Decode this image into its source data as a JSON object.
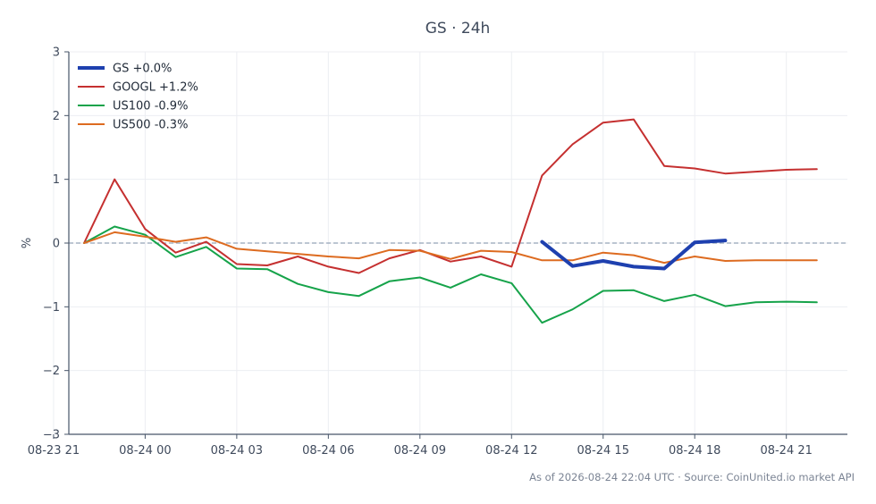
{
  "chart_data": {
    "type": "line",
    "title": "GS · 24h",
    "ylabel": "%",
    "xlabel": "",
    "ylim": [
      -3,
      3
    ],
    "yticks": [
      -3,
      -2,
      -1,
      0,
      1,
      2,
      3
    ],
    "ytick_labels": [
      "−3",
      "−2",
      "−1",
      "0",
      "1",
      "2",
      "3"
    ],
    "x_start": "08-23 21:30",
    "x_end": "08-24 23:00",
    "xticks": [
      "08-23 21:00",
      "08-24 00:00",
      "08-24 03:00",
      "08-24 06:00",
      "08-24 09:00",
      "08-24 12:00",
      "08-24 15:00",
      "08-24 18:00",
      "08-24 21:00"
    ],
    "xtick_labels": [
      "08-23 21",
      "08-24 00",
      "08-24 03",
      "08-24 06",
      "08-24 09",
      "08-24 12",
      "08-24 15",
      "08-24 18",
      "08-24 21"
    ],
    "grid": true,
    "zero_line": true,
    "legend": "top-left",
    "times": [
      "08-23 22:00",
      "08-23 23:00",
      "08-24 00:00",
      "08-24 01:00",
      "08-24 02:00",
      "08-24 03:00",
      "08-24 04:00",
      "08-24 05:00",
      "08-24 06:00",
      "08-24 07:00",
      "08-24 08:00",
      "08-24 09:00",
      "08-24 10:00",
      "08-24 11:00",
      "08-24 12:00",
      "08-24 13:00",
      "08-24 14:00",
      "08-24 15:00",
      "08-24 16:00",
      "08-24 17:00",
      "08-24 18:00",
      "08-24 19:00",
      "08-24 20:00",
      "08-24 21:00",
      "08-24 22:00"
    ],
    "series": [
      {
        "name": "GS +0.0%",
        "color": "#1e40af",
        "width": 4,
        "values": [
          null,
          null,
          null,
          null,
          null,
          null,
          null,
          null,
          null,
          null,
          null,
          null,
          null,
          null,
          null,
          0.02,
          -0.36,
          -0.28,
          -0.37,
          -0.4,
          0.01,
          0.04,
          null,
          null,
          null
        ]
      },
      {
        "name": "GOOGL +1.2%",
        "color": "#c53030",
        "width": 2,
        "values": [
          0.0,
          1.0,
          0.22,
          -0.15,
          0.02,
          -0.33,
          -0.35,
          -0.21,
          -0.37,
          -0.47,
          -0.24,
          -0.11,
          -0.29,
          -0.21,
          -0.37,
          1.06,
          1.55,
          1.89,
          1.94,
          1.21,
          1.17,
          1.09,
          1.12,
          1.15,
          1.16
        ]
      },
      {
        "name": "US100 -0.9%",
        "color": "#16a34a",
        "width": 2,
        "values": [
          0.0,
          0.26,
          0.13,
          -0.22,
          -0.06,
          -0.4,
          -0.41,
          -0.64,
          -0.77,
          -0.83,
          -0.6,
          -0.54,
          -0.7,
          -0.49,
          -0.63,
          -1.25,
          -1.04,
          -0.75,
          -0.74,
          -0.91,
          -0.81,
          -0.99,
          -0.93,
          -0.92,
          -0.93
        ]
      },
      {
        "name": "US500 -0.3%",
        "color": "#dd6b20",
        "width": 2,
        "values": [
          0.0,
          0.17,
          0.1,
          0.02,
          0.09,
          -0.09,
          -0.13,
          -0.17,
          -0.21,
          -0.24,
          -0.11,
          -0.12,
          -0.25,
          -0.12,
          -0.14,
          -0.27,
          -0.27,
          -0.15,
          -0.19,
          -0.31,
          -0.21,
          -0.28,
          -0.27,
          -0.27,
          -0.27
        ]
      }
    ]
  },
  "footer": {
    "source_text": "As of 2026-08-24 22:04 UTC · Source: CoinUnited.io market API"
  }
}
